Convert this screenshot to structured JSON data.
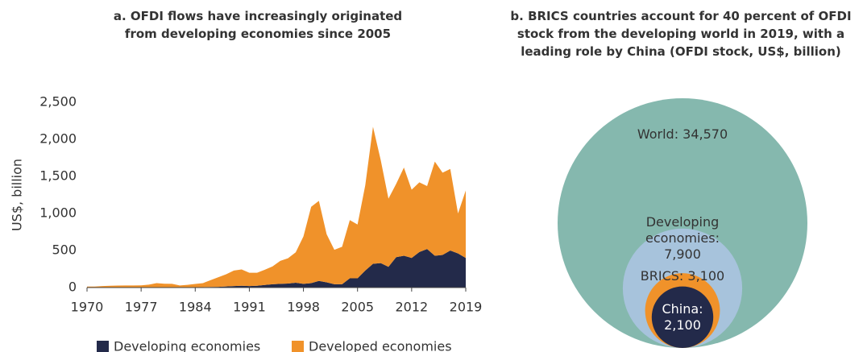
{
  "chart_data": [
    {
      "type": "stacked_area",
      "title": "a. OFDI flows have increasingly originated from developing economies since 2005",
      "ylabel": "US$, billion",
      "x": [
        1970,
        1971,
        1972,
        1973,
        1974,
        1975,
        1976,
        1977,
        1978,
        1979,
        1980,
        1981,
        1982,
        1983,
        1984,
        1985,
        1986,
        1987,
        1988,
        1989,
        1990,
        1991,
        1992,
        1993,
        1994,
        1995,
        1996,
        1997,
        1998,
        1999,
        2000,
        2001,
        2002,
        2003,
        2004,
        2005,
        2006,
        2007,
        2008,
        2009,
        2010,
        2011,
        2012,
        2013,
        2014,
        2015,
        2016,
        2017,
        2018,
        2019
      ],
      "series": [
        {
          "name": "Developing economies",
          "color": "#232a4a",
          "values": [
            1,
            1,
            2,
            2,
            2,
            3,
            3,
            3,
            4,
            5,
            5,
            6,
            4,
            4,
            5,
            6,
            8,
            10,
            15,
            20,
            25,
            20,
            25,
            35,
            45,
            50,
            55,
            65,
            50,
            60,
            90,
            70,
            45,
            45,
            125,
            125,
            230,
            320,
            330,
            280,
            410,
            430,
            400,
            480,
            520,
            430,
            440,
            500,
            460,
            400
          ]
        },
        {
          "name": "Developed economies",
          "color": "#f0922a",
          "values": [
            13,
            13,
            18,
            23,
            25,
            25,
            25,
            27,
            36,
            55,
            47,
            44,
            24,
            33,
            44,
            54,
            92,
            130,
            165,
            210,
            220,
            180,
            175,
            205,
            240,
            310,
            340,
            410,
            640,
            1030,
            1080,
            650,
            465,
            505,
            785,
            725,
            1150,
            1850,
            1390,
            920,
            990,
            1190,
            920,
            940,
            850,
            1270,
            1110,
            1100,
            540,
            910
          ]
        }
      ],
      "xlim": [
        1970,
        2019
      ],
      "xticks": [
        1970,
        1977,
        1984,
        1991,
        1998,
        2005,
        2012,
        2019
      ],
      "ylim": [
        0,
        2500
      ],
      "yticks": [
        0,
        500,
        {
          "value": 1000,
          "label": "1,000"
        },
        {
          "value": 1500,
          "label": "1,500"
        },
        {
          "value": 2000,
          "label": "2,000"
        },
        {
          "value": 2500,
          "label": "2,500"
        }
      ],
      "legend": "bottom"
    },
    {
      "type": "nested_bubble",
      "title": "b. BRICS countries account for 40 percent of OFDI stock from the developing world in 2019, with a leading role by China (OFDI stock, US$, billion)",
      "labels": [
        "World: 34,570",
        "Developing economies: 7,900",
        "BRICS: 3,100",
        "China: 2,100"
      ],
      "values": [
        34570,
        7900,
        3100,
        2100
      ],
      "colors": [
        "#85b8ae",
        "#a7c3dc",
        "#f0922a",
        "#232a4a"
      ]
    }
  ]
}
